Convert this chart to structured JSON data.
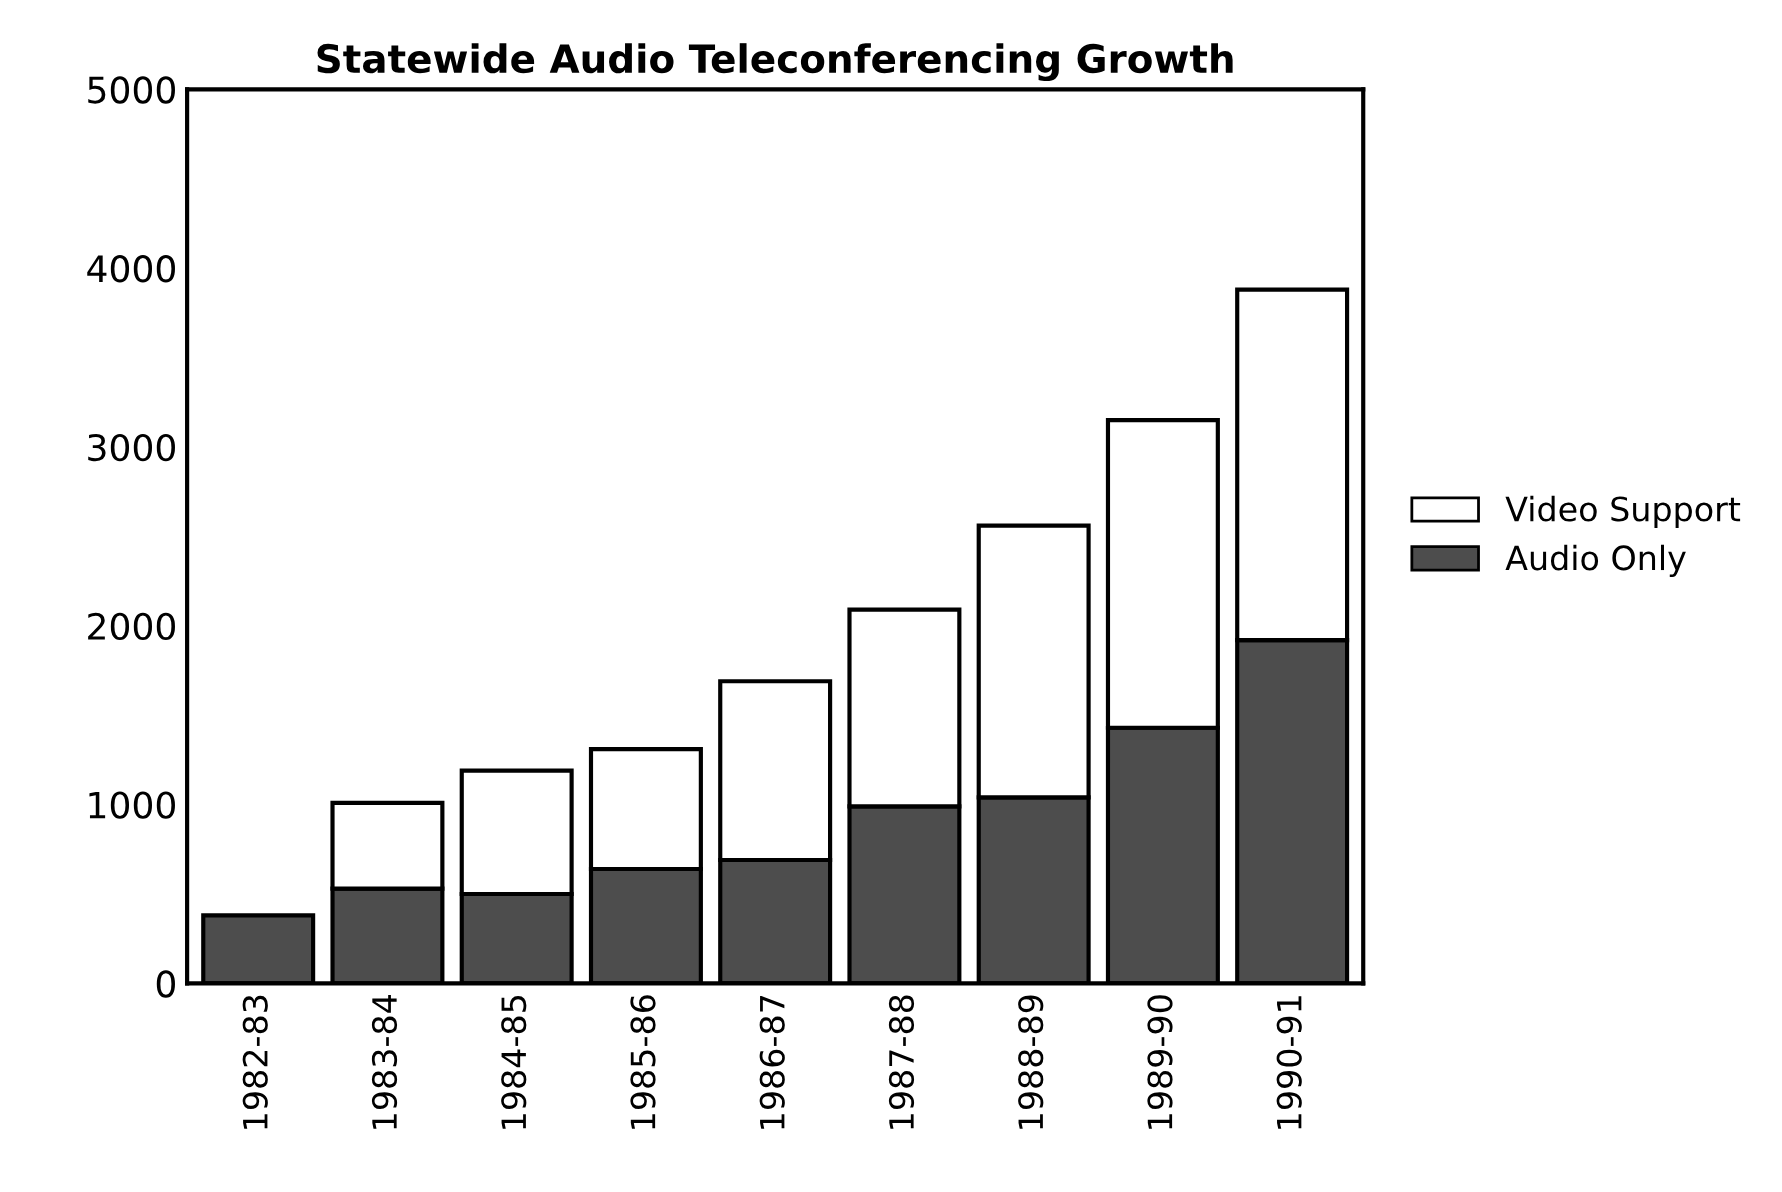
{
  "chart_data": {
    "type": "bar",
    "title": "Statewide Audio Teleconferencing Growth",
    "stacked": true,
    "categories": [
      "1982-83",
      "1983-84",
      "1984-85",
      "1985-86",
      "1986-87",
      "1987-88",
      "1988-89",
      "1989-90",
      "1990-91"
    ],
    "series": [
      {
        "name": "Audio Only",
        "color": "#4d4d4d",
        "values": [
          380,
          530,
          500,
          640,
          690,
          990,
          1040,
          1430,
          1920
        ]
      },
      {
        "name": "Video Support",
        "color": "#ffffff",
        "values": [
          null,
          480,
          690,
          670,
          1000,
          1100,
          1520,
          1720,
          1960
        ]
      }
    ],
    "ylim": [
      0,
      5000
    ],
    "yticks": [
      0,
      1000,
      2000,
      3000,
      4000,
      5000
    ],
    "grid": false,
    "legend": "right"
  }
}
